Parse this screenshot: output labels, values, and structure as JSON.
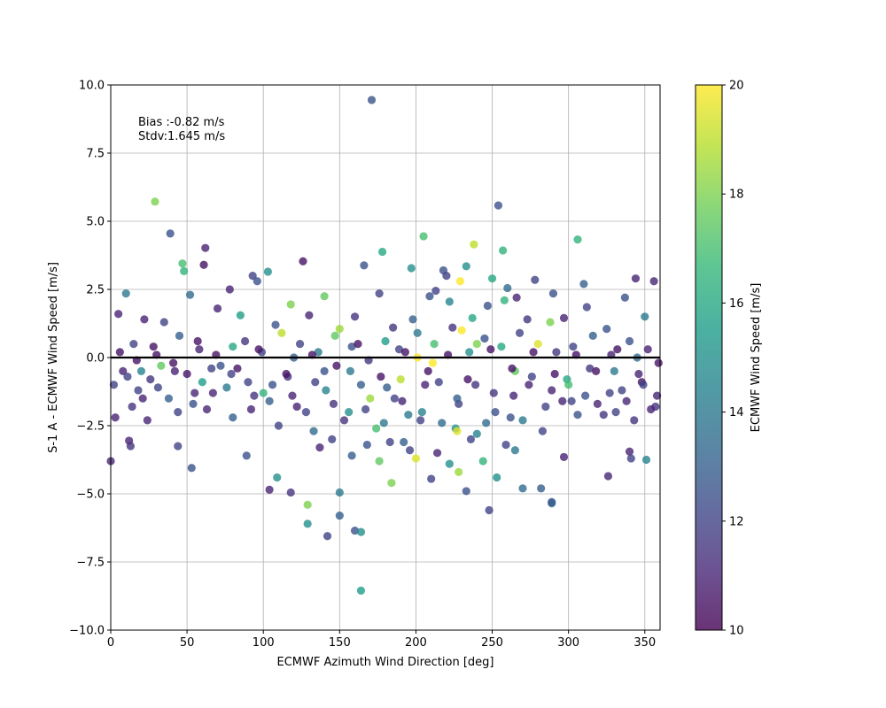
{
  "chart_data": {
    "type": "scatter",
    "xlabel": "ECMWF Azimuth Wind Direction [deg]",
    "ylabel": "S-1 A - ECMWF Wind Speed [m/s]",
    "xlim": [
      0,
      360
    ],
    "ylim": [
      -10,
      10
    ],
    "x_ticks": [
      "0",
      "50",
      "100",
      "150",
      "200",
      "250",
      "300",
      "350"
    ],
    "y_ticks": [
      "−10.0",
      "−7.5",
      "−5.0",
      "−2.5",
      "0.0",
      "2.5",
      "5.0",
      "7.5",
      "10.0"
    ],
    "grid": true,
    "zero_line": 0,
    "annotation": [
      "Bias :-0.82 m/s",
      "Stdv:1.645 m/s"
    ],
    "colorbar": {
      "label": "ECMWF Wind Speed [m/s]",
      "range": [
        10,
        20
      ],
      "ticks": [
        "10",
        "12",
        "14",
        "16",
        "18",
        "20"
      ],
      "colormap": "viridis"
    },
    "colors": [
      "#440154",
      "#482878",
      "#3e4989",
      "#31688e",
      "#26828e",
      "#1f9e89",
      "#35b779",
      "#6ece58",
      "#b5de2b",
      "#fde725"
    ],
    "points": [
      [
        171,
        9.45,
        12.5
      ],
      [
        29,
        5.72,
        18.0
      ],
      [
        254,
        5.58,
        12.5
      ],
      [
        39,
        4.55,
        12.5
      ],
      [
        205,
        4.45,
        17.0
      ],
      [
        306,
        4.33,
        16.5
      ],
      [
        238,
        4.15,
        19.0
      ],
      [
        62,
        4.02,
        11.0
      ],
      [
        257,
        3.93,
        16.5
      ],
      [
        178,
        3.88,
        16.0
      ],
      [
        126,
        3.53,
        10.5
      ],
      [
        47,
        3.45,
        17.0
      ],
      [
        61,
        3.4,
        10.5
      ],
      [
        166,
        3.38,
        12.5
      ],
      [
        103,
        3.15,
        15.0
      ],
      [
        48,
        3.17,
        16.5
      ],
      [
        197,
        3.28,
        15.0
      ],
      [
        218,
        3.2,
        12.5
      ],
      [
        93,
        3.0,
        12.0
      ],
      [
        233,
        3.35,
        15.0
      ],
      [
        5,
        1.6,
        11.0
      ],
      [
        10,
        2.35,
        14.0
      ],
      [
        52,
        2.3,
        13.5
      ],
      [
        78,
        2.5,
        11.0
      ],
      [
        96,
        2.8,
        12.5
      ],
      [
        140,
        2.25,
        17.5
      ],
      [
        118,
        1.95,
        18.0
      ],
      [
        176,
        2.35,
        12.0
      ],
      [
        213,
        2.45,
        12.0
      ],
      [
        229,
        2.8,
        20.0
      ],
      [
        260,
        2.55,
        13.5
      ],
      [
        278,
        2.85,
        12.0
      ],
      [
        266,
        2.2,
        11.0
      ],
      [
        290,
        2.35,
        12.5
      ],
      [
        310,
        2.7,
        13.0
      ],
      [
        344,
        2.9,
        11.0
      ],
      [
        356,
        2.8,
        11.0
      ],
      [
        337,
        2.2,
        12.5
      ],
      [
        220,
        3.0,
        12.0
      ],
      [
        250,
        2.9,
        16.0
      ],
      [
        22,
        1.4,
        11.0
      ],
      [
        35,
        1.3,
        12.0
      ],
      [
        70,
        1.8,
        11.0
      ],
      [
        85,
        1.55,
        15.5
      ],
      [
        108,
        1.2,
        12.5
      ],
      [
        130,
        1.55,
        11.0
      ],
      [
        150,
        1.05,
        18.5
      ],
      [
        160,
        1.5,
        11.5
      ],
      [
        185,
        1.1,
        11.5
      ],
      [
        198,
        1.4,
        13.0
      ],
      [
        209,
        2.25,
        12.5
      ],
      [
        222,
        2.05,
        14.5
      ],
      [
        237,
        1.45,
        16.0
      ],
      [
        247,
        1.9,
        12.5
      ],
      [
        258,
        2.1,
        16.5
      ],
      [
        273,
        1.4,
        11.5
      ],
      [
        288,
        1.3,
        18.0
      ],
      [
        297,
        1.45,
        11.0
      ],
      [
        312,
        1.85,
        12.0
      ],
      [
        325,
        1.05,
        12.5
      ],
      [
        350,
        1.5,
        14.0
      ],
      [
        15,
        0.5,
        12.0
      ],
      [
        30,
        0.1,
        10.5
      ],
      [
        45,
        0.8,
        13.0
      ],
      [
        58,
        0.3,
        11.0
      ],
      [
        72,
        -0.3,
        12.5
      ],
      [
        88,
        0.6,
        11.5
      ],
      [
        99,
        0.2,
        12.0
      ],
      [
        112,
        0.9,
        19.0
      ],
      [
        124,
        0.5,
        12.0
      ],
      [
        136,
        0.2,
        14.0
      ],
      [
        147,
        0.8,
        17.5
      ],
      [
        158,
        0.4,
        12.5
      ],
      [
        169,
        -0.1,
        11.5
      ],
      [
        180,
        0.6,
        15.5
      ],
      [
        189,
        0.3,
        12.0
      ],
      [
        201,
        0.9,
        14.0
      ],
      [
        212,
        0.5,
        17.0
      ],
      [
        224,
        1.1,
        11.5
      ],
      [
        235,
        0.2,
        15.0
      ],
      [
        245,
        0.7,
        12.5
      ],
      [
        256,
        0.4,
        16.0
      ],
      [
        268,
        0.9,
        12.0
      ],
      [
        280,
        0.5,
        19.5
      ],
      [
        292,
        0.2,
        11.5
      ],
      [
        303,
        0.4,
        12.0
      ],
      [
        316,
        0.8,
        13.0
      ],
      [
        328,
        0.1,
        11.0
      ],
      [
        340,
        0.6,
        12.5
      ],
      [
        352,
        0.3,
        11.0
      ],
      [
        8,
        -0.5,
        11.0
      ],
      [
        18,
        -1.2,
        12.0
      ],
      [
        26,
        -0.8,
        11.5
      ],
      [
        38,
        -1.5,
        13.0
      ],
      [
        50,
        -0.6,
        10.5
      ],
      [
        63,
        -1.9,
        11.0
      ],
      [
        76,
        -1.1,
        14.0
      ],
      [
        90,
        -0.9,
        12.0
      ],
      [
        104,
        -1.6,
        13.0
      ],
      [
        116,
        -0.7,
        11.5
      ],
      [
        128,
        -2.0,
        12.0
      ],
      [
        141,
        -1.2,
        14.5
      ],
      [
        153,
        -2.3,
        11.5
      ],
      [
        164,
        -1.0,
        13.0
      ],
      [
        174,
        -2.6,
        17.0
      ],
      [
        186,
        -1.5,
        12.0
      ],
      [
        195,
        -2.1,
        14.0
      ],
      [
        206,
        -1.0,
        11.0
      ],
      [
        217,
        -2.4,
        13.5
      ],
      [
        228,
        -1.7,
        12.0
      ],
      [
        240,
        -2.8,
        14.5
      ],
      [
        251,
        -1.3,
        11.5
      ],
      [
        262,
        -2.2,
        12.5
      ],
      [
        274,
        -1.0,
        11.0
      ],
      [
        285,
        -1.8,
        12.0
      ],
      [
        299,
        -0.8,
        16.0
      ],
      [
        311,
        -1.4,
        12.5
      ],
      [
        323,
        -2.1,
        11.5
      ],
      [
        335,
        -1.2,
        12.0
      ],
      [
        346,
        -0.6,
        11.0
      ],
      [
        357,
        -1.8,
        11.5
      ],
      [
        3,
        -2.2,
        11.0
      ],
      [
        14,
        -1.8,
        11.5
      ],
      [
        24,
        -2.3,
        11.0
      ],
      [
        33,
        -0.3,
        17.5
      ],
      [
        44,
        -2.0,
        12.0
      ],
      [
        55,
        -1.3,
        11.0
      ],
      [
        66,
        -0.4,
        12.0
      ],
      [
        80,
        -2.2,
        13.0
      ],
      [
        94,
        -1.4,
        11.5
      ],
      [
        110,
        -2.5,
        12.0
      ],
      [
        122,
        -1.8,
        11.0
      ],
      [
        133,
        -2.7,
        13.5
      ],
      [
        145,
        -3.0,
        12.0
      ],
      [
        156,
        -2.0,
        15.0
      ],
      [
        168,
        -3.2,
        12.5
      ],
      [
        179,
        -2.4,
        14.0
      ],
      [
        192,
        -3.1,
        13.0
      ],
      [
        203,
        -2.3,
        12.0
      ],
      [
        214,
        -3.5,
        11.0
      ],
      [
        226,
        -2.6,
        15.0
      ],
      [
        236,
        -3.0,
        12.0
      ],
      [
        246,
        -2.4,
        13.5
      ],
      [
        259,
        -3.2,
        12.0
      ],
      [
        270,
        -2.3,
        14.0
      ],
      [
        283,
        -2.7,
        12.0
      ],
      [
        296,
        -1.6,
        11.0
      ],
      [
        306,
        -2.1,
        12.5
      ],
      [
        319,
        -1.7,
        11.0
      ],
      [
        331,
        -2.0,
        12.0
      ],
      [
        343,
        -2.3,
        11.5
      ],
      [
        354,
        -1.9,
        11.0
      ],
      [
        0,
        -3.8,
        11.0
      ],
      [
        12,
        -3.05,
        11.0
      ],
      [
        13,
        -3.25,
        11.5
      ],
      [
        53,
        -4.05,
        12.5
      ],
      [
        44,
        -3.25,
        12.0
      ],
      [
        89,
        -3.6,
        12.5
      ],
      [
        104,
        -4.85,
        11.0
      ],
      [
        109,
        -4.4,
        15.0
      ],
      [
        118,
        -4.95,
        11.5
      ],
      [
        129,
        -5.4,
        18.0
      ],
      [
        129,
        -6.1,
        15.0
      ],
      [
        142,
        -6.55,
        12.0
      ],
      [
        150,
        -5.8,
        13.0
      ],
      [
        150,
        -4.95,
        14.0
      ],
      [
        160,
        -6.35,
        12.5
      ],
      [
        164,
        -6.4,
        15.0
      ],
      [
        164,
        -8.55,
        15.5
      ],
      [
        184,
        -4.6,
        18.0
      ],
      [
        200,
        -3.7,
        19.5
      ],
      [
        210,
        -4.45,
        12.0
      ],
      [
        228,
        -4.2,
        18.5
      ],
      [
        233,
        -4.9,
        12.5
      ],
      [
        248,
        -5.6,
        12.0
      ],
      [
        253,
        -4.4,
        15.0
      ],
      [
        270,
        -4.8,
        13.5
      ],
      [
        282,
        -4.8,
        13.0
      ],
      [
        289,
        -5.3,
        12.5
      ],
      [
        289,
        -5.35,
        13.0
      ],
      [
        297,
        -3.65,
        11.0
      ],
      [
        326,
        -4.35,
        11.0
      ],
      [
        340,
        -3.45,
        11.0
      ],
      [
        341,
        -3.7,
        12.0
      ],
      [
        351,
        -3.75,
        14.5
      ],
      [
        196,
        -3.4,
        12.0
      ],
      [
        176,
        -3.8,
        17.5
      ],
      [
        265,
        -3.4,
        14.0
      ],
      [
        222,
        -3.9,
        15.0
      ],
      [
        244,
        -3.8,
        16.5
      ],
      [
        183,
        -3.1,
        12.0
      ],
      [
        137,
        -3.3,
        11.0
      ],
      [
        158,
        -3.6,
        13.0
      ],
      [
        201,
        0.0,
        20.0
      ],
      [
        211,
        -0.2,
        20.0
      ],
      [
        230,
        1.0,
        20.0
      ],
      [
        227,
        -2.7,
        19.5
      ],
      [
        190,
        -0.8,
        19.0
      ],
      [
        170,
        -1.5,
        18.5
      ],
      [
        240,
        0.5,
        18.0
      ],
      [
        265,
        -0.5,
        17.5
      ],
      [
        300,
        -1.0,
        17.0
      ],
      [
        100,
        -1.3,
        16.5
      ],
      [
        80,
        0.4,
        16.0
      ],
      [
        60,
        -0.9,
        15.5
      ],
      [
        20,
        -0.5,
        14.5
      ],
      [
        330,
        -0.5,
        14.0
      ],
      [
        345,
        0.0,
        13.5
      ],
      [
        120,
        0.0,
        13.0
      ],
      [
        140,
        -0.5,
        12.5
      ],
      [
        6,
        0.2,
        10.5
      ],
      [
        17,
        -0.1,
        10.5
      ],
      [
        28,
        0.4,
        10.5
      ],
      [
        41,
        -0.2,
        10.5
      ],
      [
        57,
        0.6,
        10.5
      ],
      [
        69,
        0.1,
        10.5
      ],
      [
        83,
        -0.4,
        10.5
      ],
      [
        97,
        0.3,
        10.5
      ],
      [
        115,
        -0.6,
        10.5
      ],
      [
        132,
        0.1,
        10.5
      ],
      [
        148,
        -0.3,
        10.5
      ],
      [
        162,
        0.5,
        10.5
      ],
      [
        177,
        -0.7,
        10.5
      ],
      [
        193,
        0.2,
        10.5
      ],
      [
        208,
        -0.5,
        10.5
      ],
      [
        221,
        0.1,
        10.5
      ],
      [
        234,
        -0.8,
        10.5
      ],
      [
        249,
        0.3,
        10.5
      ],
      [
        263,
        -0.4,
        10.5
      ],
      [
        277,
        0.2,
        10.5
      ],
      [
        291,
        -0.6,
        10.5
      ],
      [
        305,
        0.1,
        10.5
      ],
      [
        318,
        -0.5,
        10.5
      ],
      [
        332,
        0.3,
        10.5
      ],
      [
        348,
        -0.9,
        10.5
      ],
      [
        359,
        -0.2,
        10.5
      ],
      [
        2,
        -1.0,
        12.0
      ],
      [
        11,
        -0.7,
        12.0
      ],
      [
        21,
        -1.5,
        11.0
      ],
      [
        31,
        -1.1,
        12.0
      ],
      [
        42,
        -0.5,
        11.0
      ],
      [
        54,
        -1.7,
        12.5
      ],
      [
        67,
        -1.3,
        11.0
      ],
      [
        79,
        -0.6,
        12.0
      ],
      [
        92,
        -1.9,
        11.0
      ],
      [
        106,
        -1.0,
        12.5
      ],
      [
        119,
        -1.4,
        11.0
      ],
      [
        134,
        -0.9,
        12.0
      ],
      [
        146,
        -1.7,
        11.5
      ],
      [
        157,
        -0.5,
        14.0
      ],
      [
        167,
        -1.9,
        12.0
      ],
      [
        181,
        -1.1,
        13.0
      ],
      [
        191,
        -1.6,
        11.0
      ],
      [
        204,
        -2.0,
        14.5
      ],
      [
        215,
        -0.9,
        12.0
      ],
      [
        227,
        -1.5,
        13.0
      ],
      [
        239,
        -1.0,
        11.5
      ],
      [
        252,
        -2.0,
        12.5
      ],
      [
        264,
        -1.4,
        11.0
      ],
      [
        276,
        -0.7,
        12.0
      ],
      [
        289,
        -1.2,
        11.0
      ],
      [
        302,
        -1.6,
        12.0
      ],
      [
        314,
        -0.4,
        11.5
      ],
      [
        327,
        -1.3,
        12.0
      ],
      [
        338,
        -1.6,
        11.0
      ],
      [
        349,
        -1.0,
        12.0
      ],
      [
        358,
        -1.4,
        11.0
      ]
    ]
  }
}
